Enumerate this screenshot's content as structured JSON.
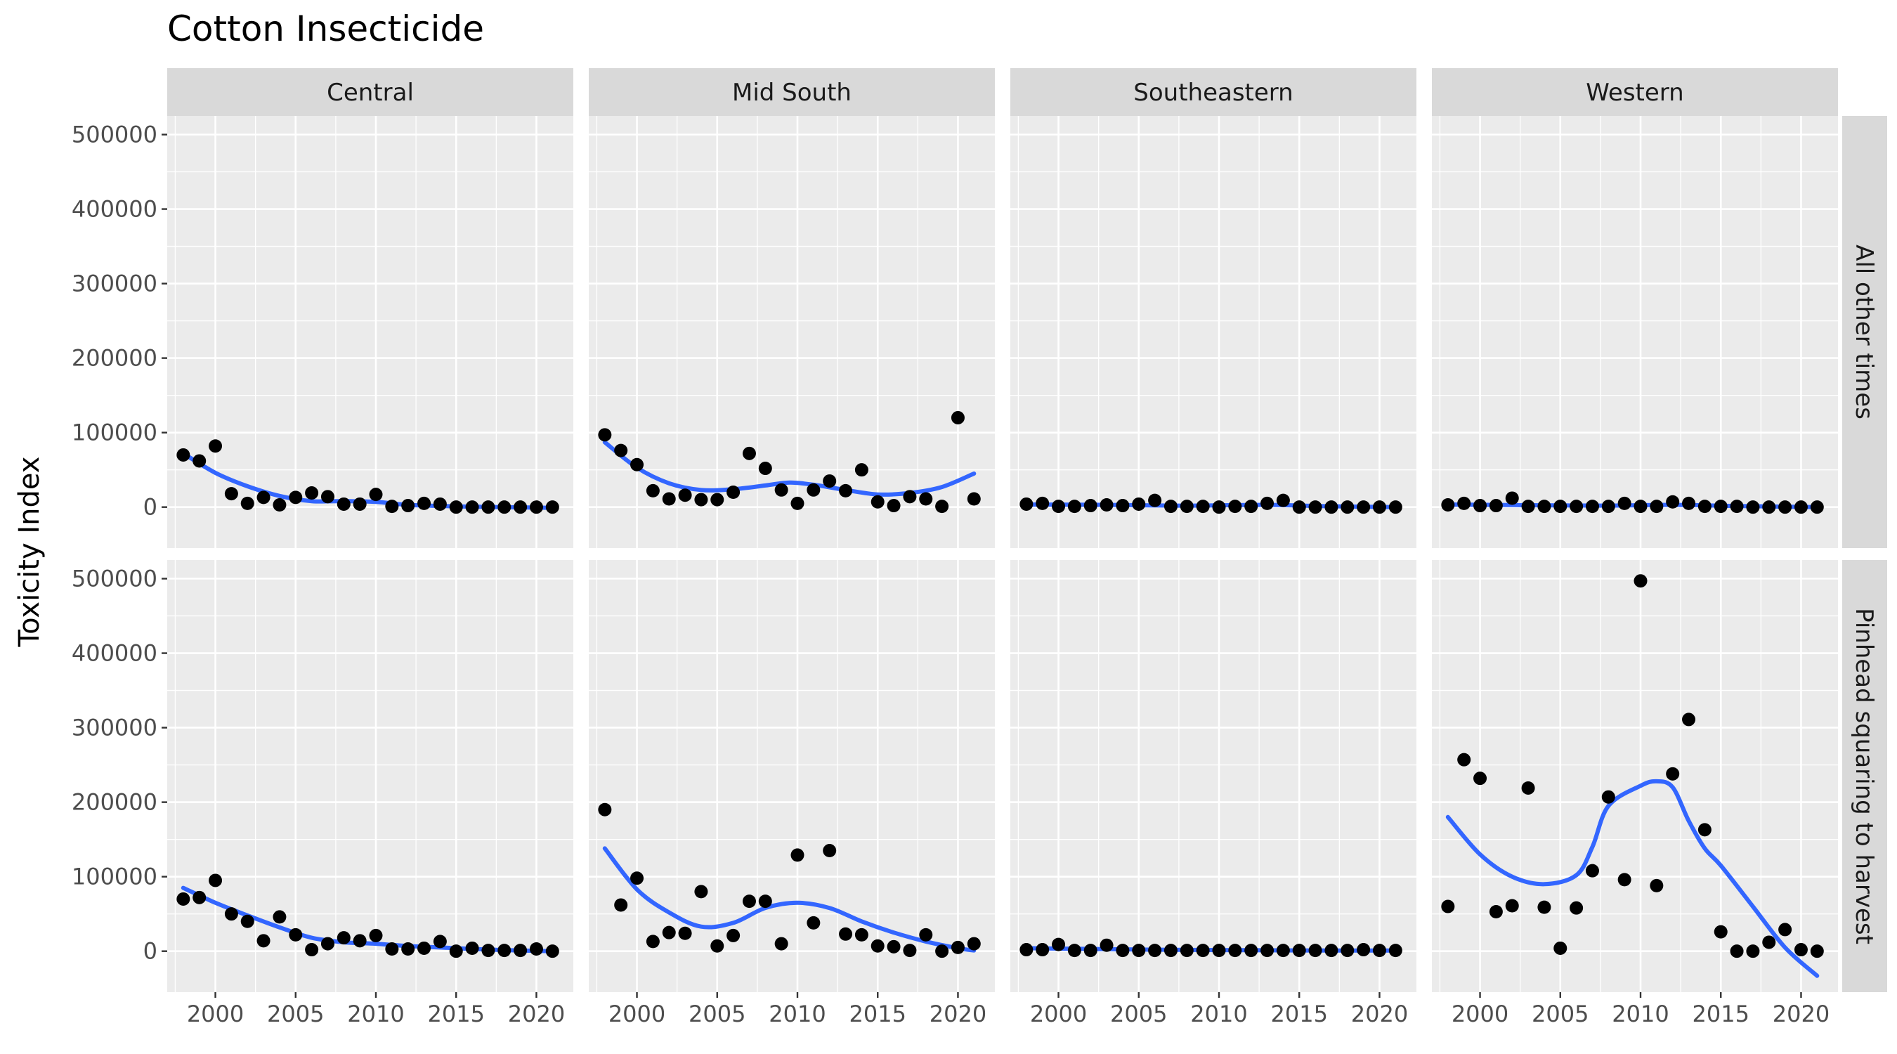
{
  "chart_data": {
    "type": "scatter",
    "title": "Cotton Insecticide",
    "ylabel": "Toxicity Index",
    "xlabel": "",
    "facet_columns": [
      "Central",
      "Mid South",
      "Southeastern",
      "Western"
    ],
    "facet_rows": [
      "All other times",
      "Pinhead squaring to harvest"
    ],
    "xlim": [
      1997,
      2022.3
    ],
    "ylim": [
      -55000,
      525000
    ],
    "x_ticks": [
      2000,
      2005,
      2010,
      2015,
      2020
    ],
    "y_ticks": [
      0,
      100000,
      200000,
      300000,
      400000,
      500000
    ],
    "y_tick_labels": [
      "0",
      "100000",
      "200000",
      "300000",
      "400000",
      "500000"
    ],
    "grid": true,
    "smooth_color": "#3366FF",
    "years": [
      1998,
      1999,
      2000,
      2001,
      2002,
      2003,
      2004,
      2005,
      2006,
      2007,
      2008,
      2009,
      2010,
      2011,
      2012,
      2013,
      2014,
      2015,
      2016,
      2017,
      2018,
      2019,
      2020,
      2021
    ],
    "panels": [
      {
        "row": "All other times",
        "col": "Central",
        "values": [
          70000,
          62000,
          82000,
          18000,
          5000,
          13000,
          3000,
          13000,
          19000,
          14000,
          4000,
          4000,
          17000,
          1000,
          2000,
          5000,
          4000,
          0,
          0,
          0,
          0,
          0,
          0,
          0
        ],
        "smooth": [
          [
            1998,
            72000
          ],
          [
            2000,
            46000
          ],
          [
            2002,
            28000
          ],
          [
            2004,
            15000
          ],
          [
            2006,
            8000
          ],
          [
            2008,
            8000
          ],
          [
            2010,
            7000
          ],
          [
            2012,
            3000
          ],
          [
            2015,
            1000
          ],
          [
            2018,
            0
          ],
          [
            2021,
            -1000
          ]
        ]
      },
      {
        "row": "All other times",
        "col": "Mid South",
        "values": [
          97000,
          76000,
          57000,
          22000,
          11000,
          16000,
          10000,
          10000,
          20000,
          72000,
          52000,
          23000,
          5000,
          23000,
          35000,
          22000,
          50000,
          7000,
          2000,
          14000,
          11000,
          1000,
          120000,
          11000
        ],
        "smooth": [
          [
            1998,
            87000
          ],
          [
            2000,
            53000
          ],
          [
            2002,
            32000
          ],
          [
            2004,
            23000
          ],
          [
            2006,
            24000
          ],
          [
            2008,
            29000
          ],
          [
            2009.5,
            33000
          ],
          [
            2011,
            30000
          ],
          [
            2013,
            23000
          ],
          [
            2015,
            17000
          ],
          [
            2017,
            19000
          ],
          [
            2019,
            27000
          ],
          [
            2021,
            45000
          ]
        ]
      },
      {
        "row": "All other times",
        "col": "Southeastern",
        "values": [
          4000,
          5000,
          1000,
          1000,
          2000,
          3000,
          2000,
          4000,
          9000,
          1000,
          1000,
          1000,
          0,
          1000,
          1000,
          5000,
          9000,
          0,
          0,
          0,
          0,
          0,
          0,
          0
        ],
        "smooth": [
          [
            1998,
            3500
          ],
          [
            2003,
            3000
          ],
          [
            2008,
            2000
          ],
          [
            2013,
            3000
          ],
          [
            2016,
            1500
          ],
          [
            2021,
            0
          ]
        ]
      },
      {
        "row": "All other times",
        "col": "Western",
        "values": [
          3000,
          5000,
          2000,
          2000,
          12000,
          1000,
          1000,
          1000,
          1000,
          1000,
          1000,
          5000,
          1000,
          1000,
          7000,
          5000,
          1000,
          1000,
          1000,
          0,
          0,
          0,
          0,
          0
        ],
        "smooth": [
          [
            1998,
            3500
          ],
          [
            2003,
            2500
          ],
          [
            2008,
            2000
          ],
          [
            2012,
            3000
          ],
          [
            2016,
            1500
          ],
          [
            2021,
            0
          ]
        ]
      },
      {
        "row": "Pinhead squaring to harvest",
        "col": "Central",
        "values": [
          70000,
          72000,
          95000,
          50000,
          40000,
          14000,
          46000,
          22000,
          2000,
          10000,
          18000,
          14000,
          21000,
          3000,
          3000,
          4000,
          13000,
          0,
          4000,
          1000,
          1000,
          1000,
          3000,
          0
        ],
        "smooth": [
          [
            1998,
            85000
          ],
          [
            2000,
            65000
          ],
          [
            2002,
            48000
          ],
          [
            2004,
            32000
          ],
          [
            2006,
            18000
          ],
          [
            2008,
            12000
          ],
          [
            2010,
            10000
          ],
          [
            2012,
            7000
          ],
          [
            2014,
            5000
          ],
          [
            2016,
            3000
          ],
          [
            2018,
            1500
          ],
          [
            2021,
            0
          ]
        ]
      },
      {
        "row": "Pinhead squaring to harvest",
        "col": "Mid South",
        "values": [
          190000,
          62000,
          98000,
          13000,
          25000,
          24000,
          80000,
          7000,
          21000,
          67000,
          67000,
          10000,
          129000,
          38000,
          135000,
          23000,
          22000,
          7000,
          6000,
          1000,
          22000,
          0,
          5000,
          10000
        ],
        "smooth": [
          [
            1998,
            138000
          ],
          [
            2000,
            83000
          ],
          [
            2002,
            52000
          ],
          [
            2004,
            33000
          ],
          [
            2006,
            38000
          ],
          [
            2008,
            58000
          ],
          [
            2010,
            65000
          ],
          [
            2012,
            58000
          ],
          [
            2014,
            40000
          ],
          [
            2016,
            25000
          ],
          [
            2018,
            13000
          ],
          [
            2020,
            4000
          ],
          [
            2021,
            1000
          ]
        ]
      },
      {
        "row": "Pinhead squaring to harvest",
        "col": "Southeastern",
        "values": [
          2000,
          2000,
          9000,
          1000,
          1000,
          8000,
          1000,
          1000,
          1000,
          1000,
          1000,
          1000,
          1000,
          1000,
          1000,
          1000,
          1000,
          1000,
          1000,
          1000,
          1000,
          2000,
          1000,
          1000
        ],
        "smooth": [
          [
            1998,
            4000
          ],
          [
            2002,
            3000
          ],
          [
            2006,
            2000
          ],
          [
            2010,
            1500
          ],
          [
            2015,
            1000
          ],
          [
            2021,
            800
          ]
        ]
      },
      {
        "row": "Pinhead squaring to harvest",
        "col": "Western",
        "values": [
          60000,
          257000,
          232000,
          53000,
          61000,
          219000,
          59000,
          4000,
          58000,
          108000,
          207000,
          96000,
          497000,
          88000,
          238000,
          311000,
          163000,
          26000,
          0,
          0,
          12000,
          29000,
          2000,
          0
        ],
        "smooth": [
          [
            1998,
            180000
          ],
          [
            2000,
            130000
          ],
          [
            2002,
            100000
          ],
          [
            2004,
            90000
          ],
          [
            2006,
            102000
          ],
          [
            2007,
            140000
          ],
          [
            2008,
            195000
          ],
          [
            2010,
            222000
          ],
          [
            2011,
            228000
          ],
          [
            2012,
            220000
          ],
          [
            2013,
            175000
          ],
          [
            2014,
            138000
          ],
          [
            2015,
            115000
          ],
          [
            2017,
            60000
          ],
          [
            2019,
            5000
          ],
          [
            2021,
            -33000
          ]
        ]
      }
    ]
  }
}
